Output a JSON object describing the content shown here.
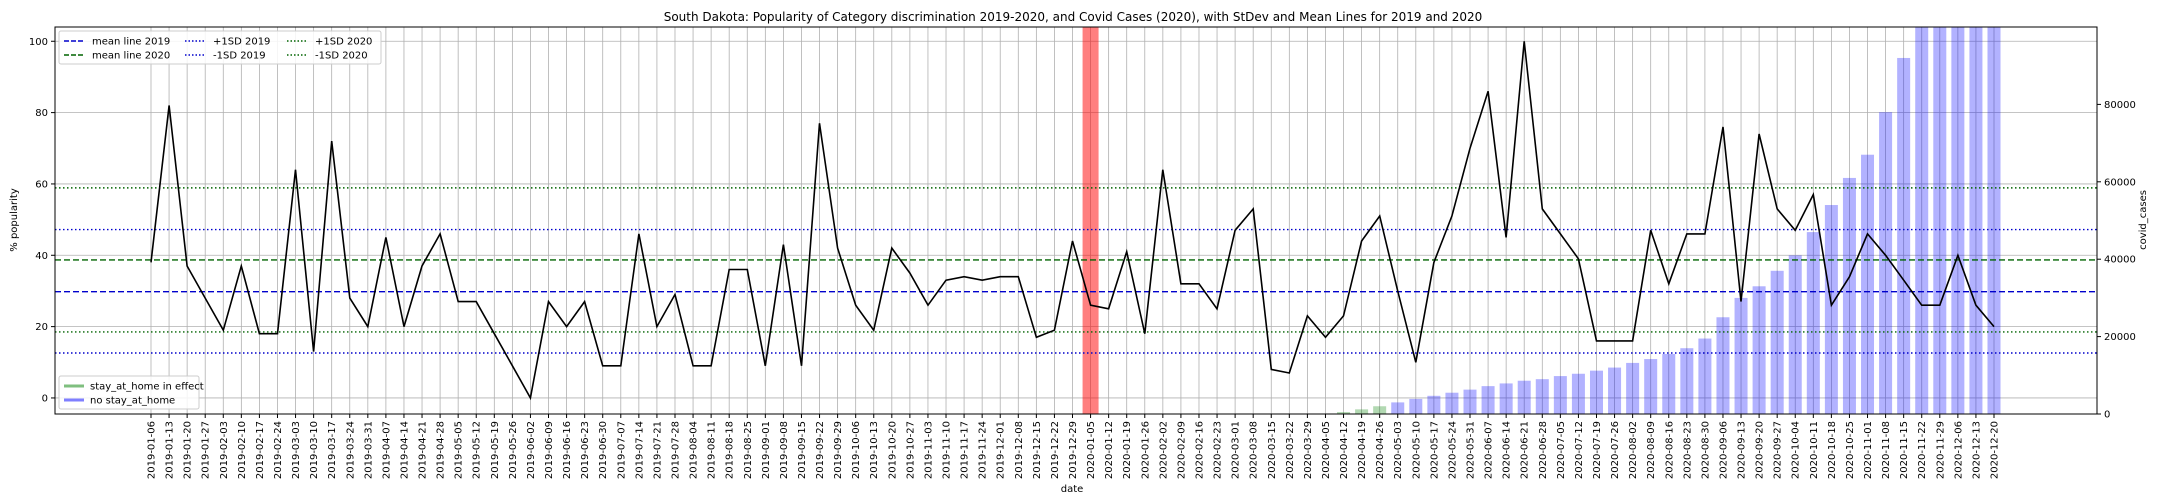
{
  "chart_data": {
    "type": "line",
    "title": "South Dakota: Popularity of Category discrimination 2019-2020, and Covid Cases (2020), with StDev and Mean Lines for 2019 and 2020",
    "xlabel": "date",
    "ylabel": "% popularity",
    "y2label": "covid_cases",
    "ylim": [
      -4.5,
      104
    ],
    "y2lim": [
      0,
      100000
    ],
    "yticks": [
      0,
      20,
      40,
      60,
      80,
      100
    ],
    "y2ticks": [
      0,
      20000,
      40000,
      60000,
      80000
    ],
    "grid": true,
    "categories": [
      "2019-01-06",
      "2019-01-13",
      "2019-01-20",
      "2019-01-27",
      "2019-02-03",
      "2019-02-10",
      "2019-02-17",
      "2019-02-24",
      "2019-03-03",
      "2019-03-10",
      "2019-03-17",
      "2019-03-24",
      "2019-03-31",
      "2019-04-07",
      "2019-04-14",
      "2019-04-21",
      "2019-04-28",
      "2019-05-05",
      "2019-05-12",
      "2019-05-19",
      "2019-05-26",
      "2019-06-02",
      "2019-06-09",
      "2019-06-16",
      "2019-06-23",
      "2019-06-30",
      "2019-07-07",
      "2019-07-14",
      "2019-07-21",
      "2019-07-28",
      "2019-08-04",
      "2019-08-11",
      "2019-08-18",
      "2019-08-25",
      "2019-09-01",
      "2019-09-08",
      "2019-09-15",
      "2019-09-22",
      "2019-09-29",
      "2019-10-06",
      "2019-10-13",
      "2019-10-20",
      "2019-10-27",
      "2019-11-03",
      "2019-11-10",
      "2019-11-17",
      "2019-11-24",
      "2019-12-01",
      "2019-12-08",
      "2019-12-15",
      "2019-12-22",
      "2019-12-29",
      "2020-01-05",
      "2020-01-12",
      "2020-01-19",
      "2020-01-26",
      "2020-02-02",
      "2020-02-09",
      "2020-02-16",
      "2020-02-23",
      "2020-03-01",
      "2020-03-08",
      "2020-03-15",
      "2020-03-22",
      "2020-03-29",
      "2020-04-05",
      "2020-04-12",
      "2020-04-19",
      "2020-04-26",
      "2020-05-03",
      "2020-05-10",
      "2020-05-17",
      "2020-05-24",
      "2020-05-31",
      "2020-06-07",
      "2020-06-14",
      "2020-06-21",
      "2020-06-28",
      "2020-07-05",
      "2020-07-12",
      "2020-07-19",
      "2020-07-26",
      "2020-08-02",
      "2020-08-09",
      "2020-08-16",
      "2020-08-23",
      "2020-08-30",
      "2020-09-06",
      "2020-09-13",
      "2020-09-20",
      "2020-09-27",
      "2020-10-04",
      "2020-10-11",
      "2020-10-18",
      "2020-10-25",
      "2020-11-01",
      "2020-11-08",
      "2020-11-15",
      "2020-11-22",
      "2020-11-29",
      "2020-12-06",
      "2020-12-13",
      "2020-12-20"
    ],
    "popularity": [
      38,
      82,
      37,
      28,
      19,
      37,
      18,
      18,
      64,
      13,
      72,
      28,
      20,
      45,
      20,
      37,
      46,
      27,
      27,
      18,
      9,
      0,
      27,
      20,
      27,
      9,
      9,
      46,
      20,
      29,
      9,
      9,
      36,
      36,
      9,
      43,
      9,
      77,
      42,
      26,
      19,
      42,
      35,
      26,
      33,
      34,
      33,
      34,
      34,
      17,
      19,
      44,
      26,
      25,
      41,
      18,
      64,
      32,
      32,
      25,
      47,
      53,
      8,
      7,
      23,
      17,
      23,
      44,
      51,
      30,
      10,
      38,
      51,
      70,
      86,
      45,
      100,
      53,
      46,
      39,
      16,
      16,
      16,
      47,
      32,
      46,
      46,
      76,
      27,
      74,
      53,
      47,
      57,
      26,
      34,
      46,
      40,
      33,
      26,
      26,
      40,
      26,
      20
    ],
    "covid_cases": [
      null,
      null,
      null,
      null,
      null,
      null,
      null,
      null,
      null,
      null,
      null,
      null,
      null,
      null,
      null,
      null,
      null,
      null,
      null,
      null,
      null,
      null,
      null,
      null,
      null,
      null,
      null,
      null,
      null,
      null,
      null,
      null,
      null,
      null,
      null,
      null,
      null,
      null,
      null,
      null,
      null,
      null,
      null,
      null,
      null,
      null,
      null,
      null,
      null,
      null,
      null,
      null,
      null,
      null,
      null,
      null,
      null,
      null,
      null,
      null,
      null,
      null,
      null,
      null,
      null,
      null,
      500,
      1200,
      2000,
      3000,
      3900,
      4700,
      5500,
      6300,
      7200,
      7900,
      8600,
      9000,
      9800,
      10400,
      11200,
      12000,
      13200,
      14200,
      15500,
      17000,
      19500,
      25000,
      30000,
      33000,
      37000,
      41000,
      47000,
      54000,
      61000,
      67000,
      78000,
      92000,
      110000,
      125000,
      135000,
      145000,
      155000
    ],
    "covid_color": "#0000ff",
    "stay_at_home_color": "#008000",
    "stay_at_home_bars": [
      66,
      67,
      68
    ],
    "highlight_color": "#ff0000",
    "highlight_index": 52,
    "mean_lines": [
      {
        "label": "mean line 2019",
        "value": 29.8,
        "color": "#0000cc",
        "style": "dashed"
      },
      {
        "label": "mean line 2020",
        "value": 38.7,
        "color": "#006400",
        "style": "dashed"
      },
      {
        "label": "+1SD 2019",
        "value": 47.2,
        "color": "#0000cc",
        "style": "dotted"
      },
      {
        "label": "-1SD 2019",
        "value": 12.6,
        "color": "#0000cc",
        "style": "dotted"
      },
      {
        "label": "+1SD 2020",
        "value": 58.9,
        "color": "#006400",
        "style": "dotted"
      },
      {
        "label": "-1SD 2020",
        "value": 18.5,
        "color": "#006400",
        "style": "dotted"
      }
    ],
    "legend_top": {
      "col1": [
        "mean line 2019",
        "mean line 2020"
      ],
      "col2": [
        "+1SD 2019",
        "-1SD 2019"
      ],
      "col3": [
        "+1SD 2020",
        "-1SD 2020"
      ],
      "placement": "top-left"
    },
    "legend_bottom": {
      "items": [
        {
          "label": "stay_at_home in effect",
          "color": "#008000"
        },
        {
          "label": "no stay_at_home",
          "color": "#0000ff"
        }
      ],
      "placement": "bottom-left"
    }
  }
}
